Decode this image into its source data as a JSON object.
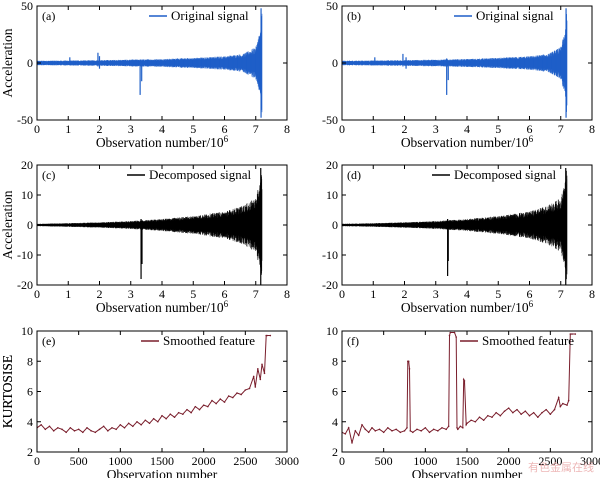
{
  "chart_data": [
    {
      "panel": "(a)",
      "type": "line",
      "xlabel": "Observation number/10",
      "xlabel_exp": "6",
      "ylabel": "Acceleration",
      "xlim": [
        0,
        8
      ],
      "ylim": [
        -50,
        50
      ],
      "xticks": [
        0,
        1,
        2,
        3,
        4,
        5,
        6,
        7,
        8
      ],
      "yticks": [
        -50,
        0,
        50
      ],
      "legend": "Original signal",
      "legend_position": "top-right",
      "color": "#1f5fc8",
      "signal": {
        "x_end": 7.2,
        "envelope": [
          [
            0,
            2
          ],
          [
            1,
            2.2
          ],
          [
            2,
            2.5
          ],
          [
            3,
            3
          ],
          [
            4,
            3.5
          ],
          [
            5,
            4.5
          ],
          [
            6,
            6
          ],
          [
            6.6,
            8
          ],
          [
            7,
            14
          ],
          [
            7.15,
            30
          ],
          [
            7.2,
            48
          ]
        ],
        "spikes": [
          [
            1.05,
            5,
            -2
          ],
          [
            1.95,
            9,
            -3
          ],
          [
            2.0,
            6,
            -5
          ],
          [
            3.3,
            3,
            -28
          ],
          [
            3.35,
            2,
            -16
          ],
          [
            4.5,
            4,
            -3
          ],
          [
            5.2,
            4,
            -4
          ],
          [
            6.5,
            6,
            -6
          ],
          [
            7.17,
            48,
            -48
          ]
        ]
      }
    },
    {
      "panel": "(b)",
      "type": "line",
      "xlabel": "Observation number/10",
      "xlabel_exp": "6",
      "ylabel": "",
      "xlim": [
        0,
        8
      ],
      "ylim": [
        -50,
        50
      ],
      "xticks": [
        0,
        1,
        2,
        3,
        4,
        5,
        6,
        7,
        8
      ],
      "yticks": [
        -50,
        0,
        50
      ],
      "legend": "Original signal",
      "legend_position": "top-right",
      "color": "#1f5fc8",
      "signal": {
        "x_end": 7.2,
        "envelope": [
          [
            0,
            2
          ],
          [
            1,
            2.2
          ],
          [
            2,
            2.5
          ],
          [
            3,
            3
          ],
          [
            4,
            3.5
          ],
          [
            5,
            4.5
          ],
          [
            6,
            6
          ],
          [
            6.6,
            8
          ],
          [
            7,
            14
          ],
          [
            7.15,
            30
          ],
          [
            7.2,
            48
          ]
        ],
        "spikes": [
          [
            1.05,
            5,
            -2
          ],
          [
            1.95,
            8,
            -3
          ],
          [
            2.05,
            5,
            -5
          ],
          [
            3.35,
            4,
            -28
          ],
          [
            3.4,
            2,
            -15
          ],
          [
            4.5,
            4,
            -3
          ],
          [
            5.2,
            4,
            -4
          ],
          [
            6.5,
            6,
            -6
          ],
          [
            7.17,
            48,
            -48
          ]
        ]
      }
    },
    {
      "panel": "(c)",
      "type": "line",
      "xlabel": "Observation number/10",
      "xlabel_exp": "6",
      "ylabel": "Acceleration",
      "xlim": [
        0,
        8
      ],
      "ylim": [
        -20,
        20
      ],
      "xticks": [
        0,
        1,
        2,
        3,
        4,
        5,
        6,
        7,
        8
      ],
      "yticks": [
        -20,
        -10,
        0,
        10,
        20
      ],
      "legend": "Decomposed signal",
      "legend_position": "top-right",
      "color": "#000000",
      "signal": {
        "x_end": 7.2,
        "envelope": [
          [
            0,
            0.4
          ],
          [
            1,
            0.6
          ],
          [
            2,
            0.9
          ],
          [
            3,
            1.3
          ],
          [
            4,
            2
          ],
          [
            5,
            3
          ],
          [
            6,
            4.5
          ],
          [
            6.6,
            6.5
          ],
          [
            7,
            9
          ],
          [
            7.15,
            15
          ],
          [
            7.2,
            19
          ]
        ],
        "spikes": [
          [
            3.33,
            2,
            -18
          ],
          [
            3.36,
            1,
            -13
          ],
          [
            7.16,
            19,
            -20
          ]
        ]
      }
    },
    {
      "panel": "(d)",
      "type": "line",
      "xlabel": "Observation number/10",
      "xlabel_exp": "6",
      "ylabel": "",
      "xlim": [
        0,
        8
      ],
      "ylim": [
        -20,
        20
      ],
      "xticks": [
        0,
        1,
        2,
        3,
        4,
        5,
        6,
        7,
        8
      ],
      "yticks": [
        -20,
        -10,
        0,
        10,
        20
      ],
      "legend": "Decomposed signal",
      "legend_position": "top-right",
      "color": "#000000",
      "signal": {
        "x_end": 7.2,
        "envelope": [
          [
            0,
            0.4
          ],
          [
            1,
            0.6
          ],
          [
            2,
            0.9
          ],
          [
            3,
            1.3
          ],
          [
            4,
            2
          ],
          [
            5,
            3
          ],
          [
            6,
            4.5
          ],
          [
            6.6,
            6.5
          ],
          [
            7,
            9
          ],
          [
            7.15,
            15
          ],
          [
            7.2,
            19
          ]
        ],
        "spikes": [
          [
            3.38,
            2,
            -17
          ],
          [
            3.4,
            1,
            -12
          ],
          [
            7.16,
            19,
            -20
          ]
        ]
      }
    },
    {
      "panel": "(e)",
      "type": "line",
      "xlabel": "Observation number",
      "xlabel_exp": "",
      "ylabel": "KURTOSISE",
      "xlim": [
        0,
        3000
      ],
      "ylim": [
        2,
        10
      ],
      "xticks": [
        0,
        500,
        1000,
        1500,
        2000,
        2500,
        3000
      ],
      "yticks": [
        2,
        4,
        6,
        8,
        10
      ],
      "legend": "Smoothed feature",
      "legend_position": "top-center",
      "color": "#7a1e2c",
      "x": [
        0,
        50,
        100,
        150,
        200,
        250,
        300,
        350,
        400,
        450,
        500,
        550,
        600,
        650,
        700,
        750,
        800,
        850,
        900,
        950,
        1000,
        1050,
        1100,
        1150,
        1200,
        1250,
        1300,
        1350,
        1400,
        1450,
        1500,
        1550,
        1600,
        1650,
        1700,
        1750,
        1800,
        1850,
        1900,
        1950,
        2000,
        2050,
        2100,
        2150,
        2200,
        2250,
        2300,
        2350,
        2400,
        2450,
        2500,
        2550,
        2600,
        2620,
        2650,
        2680,
        2700,
        2730,
        2750,
        2760,
        2800
      ],
      "y": [
        3.6,
        3.8,
        3.5,
        3.7,
        3.4,
        3.6,
        3.5,
        3.3,
        3.6,
        3.4,
        3.5,
        3.3,
        3.6,
        3.4,
        3.3,
        3.5,
        3.7,
        3.4,
        3.6,
        3.5,
        3.8,
        3.6,
        3.9,
        3.7,
        4.0,
        3.8,
        4.1,
        3.9,
        4.2,
        4.0,
        4.4,
        4.2,
        4.5,
        4.3,
        4.6,
        4.5,
        4.8,
        4.6,
        5.0,
        4.8,
        5.1,
        5.0,
        5.4,
        5.2,
        5.5,
        5.3,
        5.7,
        5.6,
        5.9,
        5.8,
        6.1,
        6.2,
        7.0,
        6.3,
        7.5,
        6.8,
        7.8,
        7.2,
        9.7,
        9.7,
        9.7
      ]
    },
    {
      "panel": "(f)",
      "type": "line",
      "xlabel": "Observation number",
      "xlabel_exp": "",
      "ylabel": "KURTOSISE",
      "xlim": [
        0,
        3000
      ],
      "ylim": [
        2,
        10
      ],
      "xticks": [
        0,
        500,
        1000,
        1500,
        2000,
        2500,
        3000
      ],
      "yticks": [
        2,
        4,
        6,
        8,
        10
      ],
      "legend": "Smoothed feature",
      "legend_position": "top-right",
      "color": "#7a1e2c",
      "x": [
        0,
        40,
        80,
        120,
        160,
        200,
        240,
        280,
        320,
        360,
        400,
        450,
        500,
        550,
        600,
        650,
        700,
        750,
        780,
        790,
        800,
        810,
        820,
        850,
        900,
        950,
        1000,
        1050,
        1100,
        1150,
        1200,
        1250,
        1280,
        1290,
        1300,
        1350,
        1370,
        1380,
        1390,
        1420,
        1450,
        1460,
        1470,
        1490,
        1500,
        1550,
        1600,
        1650,
        1700,
        1750,
        1800,
        1850,
        1900,
        1950,
        2000,
        2050,
        2100,
        2150,
        2200,
        2250,
        2300,
        2350,
        2400,
        2450,
        2500,
        2550,
        2600,
        2620,
        2650,
        2700,
        2720,
        2740,
        2760,
        2800
      ],
      "y": [
        3.3,
        3.2,
        3.6,
        2.6,
        3.4,
        3.1,
        3.8,
        3.5,
        3.3,
        3.6,
        3.4,
        3.5,
        3.3,
        3.6,
        3.4,
        3.5,
        3.3,
        3.4,
        3.6,
        8.0,
        8.0,
        7.5,
        3.4,
        3.3,
        3.5,
        3.4,
        3.6,
        3.3,
        3.5,
        3.4,
        3.6,
        3.5,
        3.7,
        9.7,
        9.9,
        9.9,
        9.6,
        3.6,
        3.5,
        3.7,
        3.6,
        6.8,
        6.7,
        3.8,
        3.9,
        4.1,
        4.0,
        4.3,
        4.1,
        4.4,
        4.3,
        4.6,
        4.4,
        4.7,
        4.9,
        4.6,
        4.8,
        4.5,
        4.7,
        4.4,
        4.6,
        4.3,
        4.6,
        4.8,
        4.5,
        4.8,
        5.6,
        5.0,
        5.2,
        5.1,
        5.4,
        9.8,
        9.8,
        9.8
      ]
    }
  ]
}
